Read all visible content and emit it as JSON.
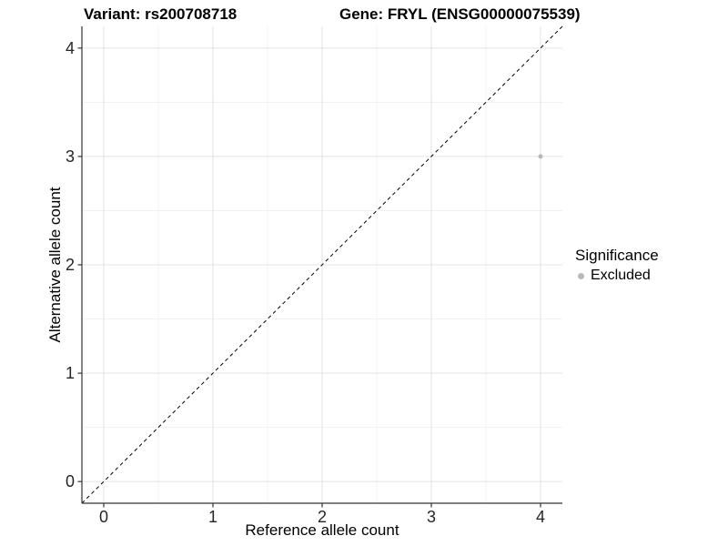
{
  "titles": {
    "variant": "Variant: rs200708718",
    "gene": "Gene: FRYL (ENSG00000075539)"
  },
  "legend": {
    "title": "Significance",
    "items": [
      {
        "label": "Excluded",
        "color": "#b9b9b9"
      }
    ]
  },
  "colors": {
    "background": "#ffffff",
    "grid_major": "#e3e3e3",
    "grid_minor": "#f1f1f1",
    "axis_line": "#333333",
    "tick_mark": "#333333",
    "tick_label": "#262626",
    "identity_line": "#000000",
    "point": "#b9b9b9"
  },
  "chart_data": {
    "type": "scatter",
    "title_segments": {
      "variant": "Variant: rs200708718",
      "gene": "Gene: FRYL (ENSG00000075539)"
    },
    "xlabel": "Reference allele count",
    "ylabel": "Alternative allele count",
    "xlim": [
      -0.2,
      4.2
    ],
    "ylim": [
      -0.2,
      4.2
    ],
    "x_ticks": [
      0,
      1,
      2,
      3,
      4
    ],
    "y_ticks": [
      0,
      1,
      2,
      3,
      4
    ],
    "grid": "major+minor",
    "legend_position": "right",
    "identity_line": {
      "style": "dashed",
      "from": [
        -0.2,
        -0.2
      ],
      "to": [
        4.2,
        4.2
      ]
    },
    "series": [
      {
        "name": "Excluded",
        "color": "#b9b9b9",
        "points": [
          {
            "x": 4,
            "y": 3
          }
        ]
      }
    ]
  }
}
